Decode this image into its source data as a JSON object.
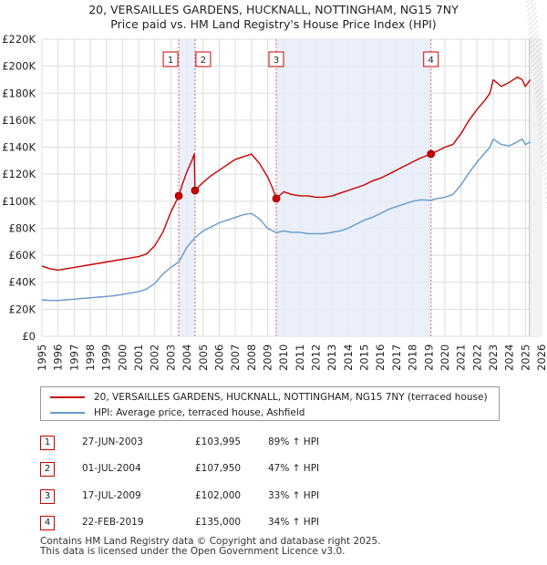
{
  "chart_data": {
    "type": "line",
    "title": "20, VERSAILLES GARDENS, HUCKNALL, NOTTINGHAM, NG15 7NY",
    "subtitle": "Price paid vs. HM Land Registry's House Price Index (HPI)",
    "xlim": [
      1995,
      2026
    ],
    "ylim": [
      0,
      220000
    ],
    "x_ticks": [
      "1995",
      "1996",
      "1997",
      "1998",
      "1999",
      "2000",
      "2001",
      "2002",
      "2003",
      "2004",
      "2005",
      "2006",
      "2007",
      "2008",
      "2009",
      "2010",
      "2011",
      "2012",
      "2013",
      "2014",
      "2015",
      "2016",
      "2017",
      "2018",
      "2019",
      "2020",
      "2021",
      "2022",
      "2023",
      "2024",
      "2025",
      "2026"
    ],
    "y_ticks": [
      {
        "value": 0,
        "label": "£0"
      },
      {
        "value": 20000,
        "label": "£20K"
      },
      {
        "value": 40000,
        "label": "£40K"
      },
      {
        "value": 60000,
        "label": "£60K"
      },
      {
        "value": 80000,
        "label": "£80K"
      },
      {
        "value": 100000,
        "label": "£100K"
      },
      {
        "value": 120000,
        "label": "£120K"
      },
      {
        "value": 140000,
        "label": "£140K"
      },
      {
        "value": 160000,
        "label": "£160K"
      },
      {
        "value": 180000,
        "label": "£180K"
      },
      {
        "value": 200000,
        "label": "£200K"
      },
      {
        "value": 220000,
        "label": "£220K"
      }
    ],
    "grid": true,
    "colors": {
      "property": "#cc0000",
      "hpi": "#6699cc",
      "shade": "#e6ecf8",
      "marker_box": "#cc0000"
    },
    "series": [
      {
        "name": "20, VERSAILLES GARDENS, HUCKNALL, NOTTINGHAM, NG15 7NY (terraced house)",
        "x": [
          1995.0,
          1995.5,
          1996.0,
          1996.5,
          1997.0,
          1997.5,
          1998.0,
          1998.5,
          1999.0,
          1999.5,
          2000.0,
          2000.5,
          2001.0,
          2001.5,
          2002.0,
          2002.5,
          2003.0,
          2003.49,
          2003.49,
          2003.7,
          2004.0,
          2004.3,
          2004.45,
          2004.5,
          2004.5,
          2005.0,
          2005.5,
          2006.0,
          2006.5,
          2007.0,
          2007.5,
          2008.0,
          2008.5,
          2009.0,
          2009.3,
          2009.54,
          2009.54,
          2010.0,
          2010.5,
          2011.0,
          2011.5,
          2012.0,
          2012.5,
          2013.0,
          2013.5,
          2014.0,
          2014.5,
          2015.0,
          2015.5,
          2016.0,
          2016.5,
          2017.0,
          2017.5,
          2018.0,
          2018.5,
          2019.14,
          2019.14,
          2019.5,
          2020.0,
          2020.5,
          2021.0,
          2021.5,
          2022.0,
          2022.5,
          2022.8,
          2023.0,
          2023.5,
          2024.0,
          2024.5,
          2024.8,
          2025.0,
          2025.3
        ],
        "y": [
          52000,
          50000,
          49000,
          50000,
          51000,
          52000,
          53000,
          54000,
          55000,
          56000,
          57000,
          58000,
          59000,
          61000,
          67000,
          77000,
          92000,
          103995,
          103995,
          112000,
          122000,
          130000,
          135000,
          107950,
          107950,
          114000,
          119000,
          123000,
          127000,
          131000,
          133000,
          135000,
          128000,
          118000,
          110000,
          102000,
          102000,
          107000,
          105000,
          104000,
          104000,
          103000,
          103000,
          104000,
          106000,
          108000,
          110000,
          112000,
          115000,
          117000,
          120000,
          123000,
          126000,
          129000,
          132000,
          135000,
          135000,
          137000,
          140000,
          142000,
          150000,
          160000,
          168000,
          175000,
          180000,
          190000,
          185000,
          188000,
          192000,
          190000,
          185000,
          190000
        ]
      },
      {
        "name": "HPI: Average price, terraced house, Ashfield",
        "x": [
          1995.0,
          1995.5,
          1996.0,
          1996.5,
          1997.0,
          1997.5,
          1998.0,
          1998.5,
          1999.0,
          1999.5,
          2000.0,
          2000.5,
          2001.0,
          2001.5,
          2002.0,
          2002.5,
          2003.0,
          2003.49,
          2004.0,
          2004.5,
          2005.0,
          2005.5,
          2006.0,
          2006.5,
          2007.0,
          2007.5,
          2008.0,
          2008.5,
          2009.0,
          2009.54,
          2010.0,
          2010.5,
          2011.0,
          2011.5,
          2012.0,
          2012.5,
          2013.0,
          2013.5,
          2014.0,
          2014.5,
          2015.0,
          2015.5,
          2016.0,
          2016.5,
          2017.0,
          2017.5,
          2018.0,
          2018.5,
          2019.14,
          2019.5,
          2020.0,
          2020.5,
          2021.0,
          2021.5,
          2022.0,
          2022.5,
          2022.8,
          2023.0,
          2023.5,
          2024.0,
          2024.5,
          2024.8,
          2025.0,
          2025.3
        ],
        "y": [
          27000,
          26500,
          26500,
          27000,
          27500,
          28000,
          28500,
          29000,
          29500,
          30000,
          31000,
          32000,
          33000,
          35000,
          39000,
          46000,
          51000,
          55000,
          66000,
          73000,
          78000,
          81000,
          84000,
          86000,
          88000,
          90000,
          91000,
          87000,
          80000,
          76700,
          78000,
          77000,
          77000,
          76000,
          76000,
          76000,
          77000,
          78000,
          80000,
          83000,
          86000,
          88000,
          91000,
          94000,
          96000,
          98000,
          100000,
          101000,
          100700,
          102000,
          103000,
          105000,
          112000,
          121000,
          129000,
          136000,
          140000,
          146000,
          142000,
          141000,
          144000,
          146000,
          142000,
          144000
        ]
      }
    ],
    "sale_markers": [
      {
        "label": "1",
        "x": 2003.49,
        "y": 103995
      },
      {
        "label": "2",
        "x": 2004.5,
        "y": 107950
      },
      {
        "label": "3",
        "x": 2009.54,
        "y": 102000
      },
      {
        "label": "4",
        "x": 2019.14,
        "y": 135000
      }
    ],
    "shaded_ranges": [
      [
        2003.49,
        2004.5
      ],
      [
        2009.54,
        2019.14
      ]
    ],
    "hatch_from": 2025.25
  },
  "legend": {
    "property_label": "20, VERSAILLES GARDENS, HUCKNALL, NOTTINGHAM, NG15 7NY (terraced house)",
    "hpi_label": "HPI: Average price, terraced house, Ashfield"
  },
  "sales": [
    {
      "num": "1",
      "date": "27-JUN-2003",
      "price": "£103,995",
      "hpi": "89% ↑ HPI"
    },
    {
      "num": "2",
      "date": "01-JUL-2004",
      "price": "£107,950",
      "hpi": "47% ↑ HPI"
    },
    {
      "num": "3",
      "date": "17-JUL-2009",
      "price": "£102,000",
      "hpi": "33% ↑ HPI"
    },
    {
      "num": "4",
      "date": "22-FEB-2019",
      "price": "£135,000",
      "hpi": "34% ↑ HPI"
    }
  ],
  "footer": {
    "line1": "Contains HM Land Registry data © Copyright and database right 2025.",
    "line2": "This data is licensed under the Open Government Licence v3.0."
  }
}
